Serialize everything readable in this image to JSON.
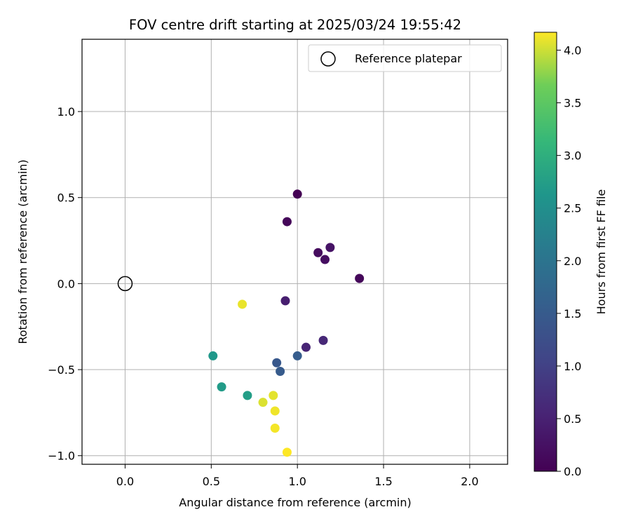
{
  "chart_data": {
    "type": "scatter",
    "title": "FOV centre drift starting at 2025/03/24 19:55:42",
    "xlabel": "Angular distance from reference (arcmin)",
    "ylabel": "Rotation from reference (arcmin)",
    "xlim": [
      -0.25,
      2.22
    ],
    "ylim": [
      -1.05,
      1.42
    ],
    "xticks": [
      0.0,
      0.5,
      1.0,
      1.5,
      2.0
    ],
    "xtick_labels": [
      "0.0",
      "0.5",
      "1.0",
      "1.5",
      "2.0"
    ],
    "yticks": [
      -1.0,
      -0.5,
      0.0,
      0.5,
      1.0
    ],
    "ytick_labels": [
      "−1.0",
      "−0.5",
      "0.0",
      "0.5",
      "1.0"
    ],
    "grid": true,
    "legend": {
      "position": "top-right",
      "entries": [
        "Reference platepar"
      ]
    },
    "reference_point": {
      "x": 0.0,
      "y": 0.0,
      "label": "Reference platepar"
    },
    "colormap": "viridis",
    "colorbar": {
      "label": "Hours from first FF file",
      "range": [
        0.0,
        4.17
      ],
      "ticks": [
        0.0,
        0.5,
        1.0,
        1.5,
        2.0,
        2.5,
        3.0,
        3.5,
        4.0
      ],
      "tick_labels": [
        "0.0",
        "0.5",
        "1.0",
        "1.5",
        "2.0",
        "2.5",
        "3.0",
        "3.5",
        "4.0"
      ]
    },
    "points": [
      {
        "x": 1.0,
        "y": 0.52,
        "hours": 0.0
      },
      {
        "x": 0.94,
        "y": 0.36,
        "hours": 0.08
      },
      {
        "x": 1.12,
        "y": 0.18,
        "hours": 0.17
      },
      {
        "x": 1.16,
        "y": 0.14,
        "hours": 0.2
      },
      {
        "x": 1.19,
        "y": 0.21,
        "hours": 0.28
      },
      {
        "x": 1.36,
        "y": 0.03,
        "hours": 0.1
      },
      {
        "x": 0.93,
        "y": -0.1,
        "hours": 0.45
      },
      {
        "x": 1.05,
        "y": -0.37,
        "hours": 0.55
      },
      {
        "x": 1.15,
        "y": -0.33,
        "hours": 0.6
      },
      {
        "x": 0.88,
        "y": -0.46,
        "hours": 1.45
      },
      {
        "x": 0.9,
        "y": -0.51,
        "hours": 1.5
      },
      {
        "x": 1.0,
        "y": -0.42,
        "hours": 1.55
      },
      {
        "x": 0.51,
        "y": -0.42,
        "hours": 2.65
      },
      {
        "x": 0.56,
        "y": -0.6,
        "hours": 2.7
      },
      {
        "x": 0.71,
        "y": -0.65,
        "hours": 2.75
      },
      {
        "x": 0.68,
        "y": -0.12,
        "hours": 4.1
      },
      {
        "x": 0.8,
        "y": -0.69,
        "hours": 4.05
      },
      {
        "x": 0.86,
        "y": -0.65,
        "hours": 4.08
      },
      {
        "x": 0.87,
        "y": -0.74,
        "hours": 4.12
      },
      {
        "x": 0.87,
        "y": -0.84,
        "hours": 4.14
      },
      {
        "x": 0.94,
        "y": -0.98,
        "hours": 4.17
      }
    ]
  }
}
